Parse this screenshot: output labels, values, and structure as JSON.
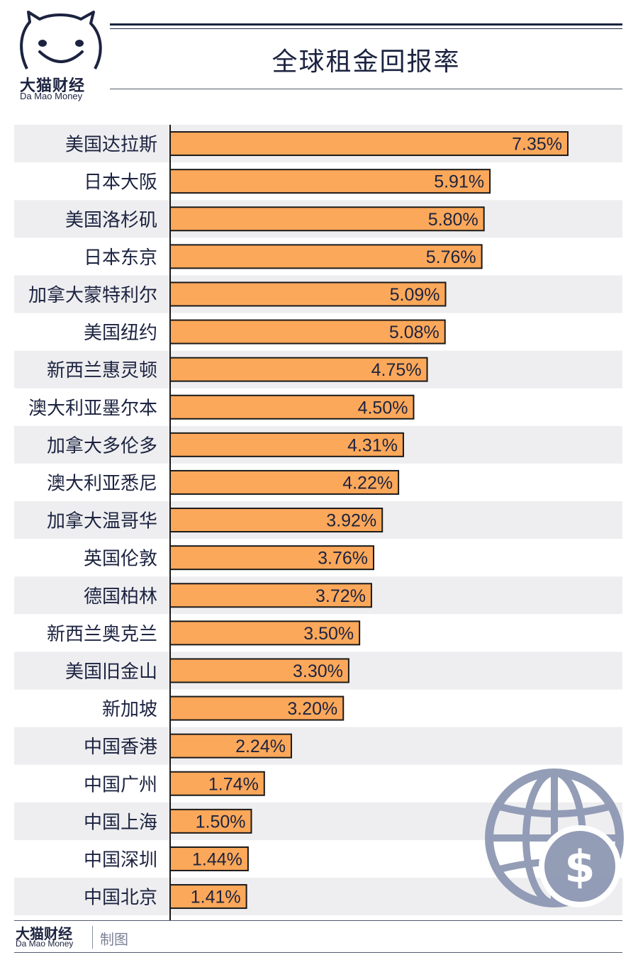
{
  "brand": {
    "name_cn": "大猫财经",
    "name_en": "Da Mao Money"
  },
  "title": "全球租金回报率",
  "footer": {
    "name_cn": "大猫财经",
    "name_en": "Da Mao Money",
    "label": "制图"
  },
  "icons": [
    "cat-face-logo",
    "globe-dollar-icon"
  ],
  "colors": {
    "bar": "#fca85a",
    "bar_border": "#1a1a1a",
    "row_band": "#eeeef0",
    "text": "#1c2340",
    "globe": "#8e98b3"
  },
  "chart_data": {
    "type": "bar",
    "orientation": "horizontal",
    "title": "全球租金回报率",
    "categories": [
      "美国达拉斯",
      "日本大阪",
      "美国洛杉矶",
      "日本东京",
      "加拿大蒙特利尔",
      "美国纽约",
      "新西兰惠灵顿",
      "澳大利亚墨尔本",
      "加拿大多伦多",
      "澳大利亚悉尼",
      "加拿大温哥华",
      "英国伦敦",
      "德国柏林",
      "新西兰奥克兰",
      "美国旧金山",
      "新加坡",
      "中国香港",
      "中国广州",
      "中国上海",
      "中国深圳",
      "中国北京"
    ],
    "values": [
      7.35,
      5.91,
      5.8,
      5.76,
      5.09,
      5.08,
      4.75,
      4.5,
      4.31,
      4.22,
      3.92,
      3.76,
      3.72,
      3.5,
      3.3,
      3.2,
      2.24,
      1.74,
      1.5,
      1.44,
      1.41
    ],
    "value_labels": [
      "7.35%",
      "5.91%",
      "5.80%",
      "5.76%",
      "5.09%",
      "5.08%",
      "4.75%",
      "4.50%",
      "4.31%",
      "4.22%",
      "3.92%",
      "3.76%",
      "3.72%",
      "3.50%",
      "3.30%",
      "3.20%",
      "2.24%",
      "1.74%",
      "1.50%",
      "1.44%",
      "1.41%"
    ],
    "unit": "%",
    "xlim": [
      0,
      7.35
    ],
    "grid": false,
    "alternating_row_bands": true
  }
}
